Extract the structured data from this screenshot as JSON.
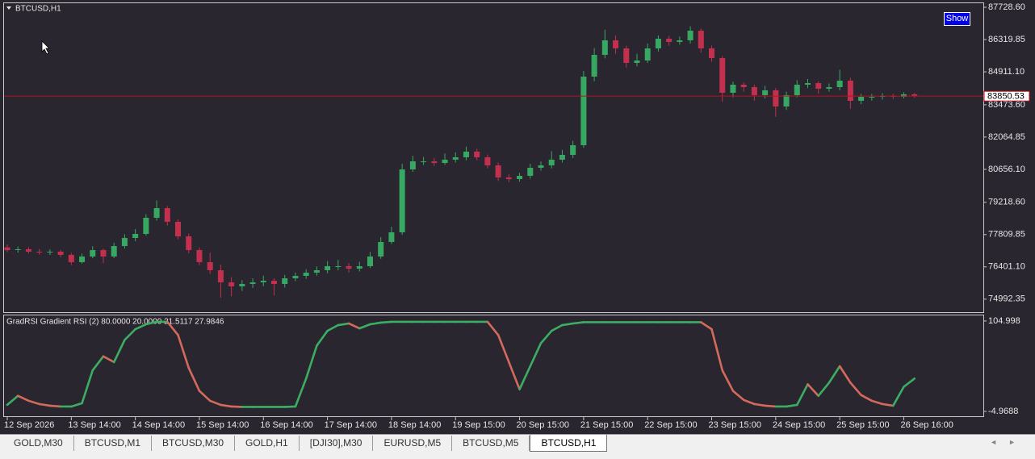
{
  "chart_data": [
    {
      "type": "candlestick",
      "title": "BTCUSD,H1",
      "categories": [
        "12 Sep 2026",
        null,
        null,
        null,
        null,
        null,
        "13 Sep 14:00",
        null,
        null,
        null,
        null,
        null,
        "14 Sep 14:00",
        null,
        null,
        null,
        null,
        null,
        "15 Sep 14:00",
        null,
        null,
        null,
        null,
        null,
        "16 Sep 14:00",
        null,
        null,
        null,
        null,
        null,
        "17 Sep 14:00",
        null,
        null,
        null,
        null,
        null,
        "18 Sep 14:00",
        null,
        null,
        null,
        null,
        null,
        "19 Sep 15:00",
        null,
        null,
        null,
        null,
        null,
        "20 Sep 15:00",
        null,
        null,
        null,
        null,
        null,
        "21 Sep 15:00",
        null,
        null,
        null,
        null,
        null,
        "22 Sep 15:00",
        null,
        null,
        null,
        null,
        null,
        "23 Sep 15:00",
        null,
        null,
        null,
        null,
        null,
        "24 Sep 15:00",
        null,
        null,
        null,
        null,
        null,
        "25 Sep 15:00",
        null,
        null,
        null,
        null,
        null,
        "26 Sep 16:00",
        null
      ],
      "ohlc": [
        [
          77250,
          77380,
          77050,
          77134
        ],
        [
          77134,
          77290,
          77020,
          77169
        ],
        [
          77169,
          77260,
          76980,
          77063
        ],
        [
          77063,
          77180,
          76940,
          77028
        ],
        [
          77028,
          77160,
          76920,
          77063
        ],
        [
          77063,
          77140,
          76820,
          76923
        ],
        [
          76923,
          77010,
          76480,
          76606
        ],
        [
          76606,
          76980,
          76540,
          76853
        ],
        [
          76853,
          77300,
          76780,
          77134
        ],
        [
          77134,
          77200,
          76560,
          76853
        ],
        [
          76853,
          77450,
          76780,
          77310
        ],
        [
          77310,
          77820,
          77200,
          77662
        ],
        [
          77662,
          78050,
          77520,
          77838
        ],
        [
          77838,
          78700,
          77760,
          78542
        ],
        [
          78542,
          79300,
          78420,
          78964
        ],
        [
          78964,
          79050,
          78200,
          78366
        ],
        [
          78366,
          78480,
          77600,
          77732
        ],
        [
          77732,
          77850,
          77000,
          77134
        ],
        [
          77134,
          77250,
          76480,
          76606
        ],
        [
          76606,
          77020,
          76100,
          76254
        ],
        [
          76254,
          76500,
          75050,
          75726
        ],
        [
          75726,
          75950,
          75120,
          75550
        ],
        [
          75550,
          75820,
          75350,
          75655
        ],
        [
          75655,
          75900,
          75480,
          75726
        ],
        [
          75726,
          76020,
          75560,
          75796
        ],
        [
          75796,
          75900,
          75150,
          75655
        ],
        [
          75655,
          76050,
          75500,
          75902
        ],
        [
          75902,
          76150,
          75780,
          76007
        ],
        [
          76007,
          76300,
          75880,
          76148
        ],
        [
          76148,
          76420,
          76020,
          76254
        ],
        [
          76254,
          76650,
          76120,
          76430
        ],
        [
          76430,
          76700,
          76250,
          76430
        ],
        [
          76430,
          76560,
          76150,
          76324
        ],
        [
          76324,
          76620,
          76200,
          76430
        ],
        [
          76430,
          77050,
          76350,
          76853
        ],
        [
          76853,
          77700,
          76750,
          77486
        ],
        [
          77486,
          78150,
          77400,
          77908
        ],
        [
          77908,
          80900,
          77800,
          80654
        ],
        [
          80654,
          81250,
          80550,
          81006
        ],
        [
          81006,
          81200,
          80850,
          81006
        ],
        [
          81006,
          81150,
          80800,
          80935
        ],
        [
          80935,
          81350,
          80850,
          81078
        ],
        [
          81078,
          81400,
          80950,
          81182
        ],
        [
          81182,
          81650,
          81050,
          81429
        ],
        [
          81429,
          81550,
          81050,
          81182
        ],
        [
          81182,
          81300,
          80700,
          80830
        ],
        [
          80830,
          80950,
          80150,
          80302
        ],
        [
          80302,
          80450,
          80100,
          80231
        ],
        [
          80231,
          80500,
          80120,
          80372
        ],
        [
          80372,
          80900,
          80250,
          80725
        ],
        [
          80725,
          81000,
          80600,
          80830
        ],
        [
          80830,
          81450,
          80700,
          81078
        ],
        [
          81078,
          81500,
          80950,
          81287
        ],
        [
          81287,
          81900,
          81150,
          81710
        ],
        [
          81710,
          84950,
          81600,
          84702
        ],
        [
          84702,
          85950,
          84500,
          85652
        ],
        [
          85652,
          86750,
          85500,
          86286
        ],
        [
          86286,
          86500,
          85700,
          85934
        ],
        [
          85934,
          86050,
          85100,
          85300
        ],
        [
          85300,
          85700,
          85150,
          85406
        ],
        [
          85406,
          86150,
          85300,
          85934
        ],
        [
          85934,
          86500,
          85800,
          86357
        ],
        [
          86357,
          86480,
          86050,
          86216
        ],
        [
          86216,
          86450,
          86100,
          86286
        ],
        [
          86286,
          86900,
          86150,
          86707
        ],
        [
          86707,
          86800,
          85750,
          85934
        ],
        [
          85934,
          86050,
          85350,
          85512
        ],
        [
          85512,
          85600,
          83600,
          83998
        ],
        [
          83998,
          84480,
          83800,
          84350
        ],
        [
          84350,
          84450,
          84050,
          84244
        ],
        [
          84244,
          84350,
          83650,
          83893
        ],
        [
          83893,
          84300,
          83750,
          84104
        ],
        [
          84104,
          84200,
          82950,
          83399
        ],
        [
          83399,
          84050,
          83250,
          83893
        ],
        [
          83893,
          84550,
          83800,
          84350
        ],
        [
          84350,
          84600,
          84200,
          84420
        ],
        [
          84420,
          84500,
          83950,
          84174
        ],
        [
          84174,
          84400,
          84050,
          84244
        ],
        [
          84244,
          85000,
          84100,
          84526
        ],
        [
          84526,
          84650,
          83300,
          83646
        ],
        [
          83646,
          83950,
          83500,
          83822
        ],
        [
          83822,
          83950,
          83650,
          83822
        ],
        [
          83822,
          83980,
          83700,
          83857
        ],
        [
          83857,
          83950,
          83720,
          83822
        ],
        [
          83822,
          84020,
          83750,
          83928
        ],
        [
          83928,
          83990,
          83780,
          83850.53
        ]
      ],
      "up_color": "#36a862",
      "down_color": "#c2304e",
      "ylim": [
        74388,
        87905
      ],
      "yticks": [
        {
          "value": 87728.6,
          "label": "87728.60"
        },
        86319.85,
        {
          "value": 84911.1,
          "label": "84911.10"
        },
        {
          "value": 83473.6,
          "label": "83473.60"
        },
        82064.85,
        {
          "value": 80656.1,
          "label": "80656.10"
        },
        {
          "value": 79218.6,
          "label": "79218.60"
        },
        77809.85,
        {
          "value": 76401.1,
          "label": "76401.10"
        },
        74992.35
      ],
      "current_price": 83850.53,
      "current_price_color": "#b3141c"
    },
    {
      "type": "line",
      "title": "GradRSI Gradient RSI (2) 80.0000 20.0000 21.5117 27.9846",
      "values": [
        3,
        14,
        8,
        4,
        2,
        1,
        1,
        5,
        45,
        62,
        55,
        82,
        95,
        101,
        104,
        104,
        88,
        48,
        20,
        8,
        3,
        1,
        0.5,
        0.5,
        0.5,
        0.5,
        0.5,
        1,
        35,
        75,
        93,
        100,
        102,
        96,
        101,
        103,
        104,
        104,
        104,
        104,
        104,
        104,
        104,
        104,
        104,
        104,
        88,
        55,
        22,
        50,
        78,
        93,
        100,
        102,
        103.5,
        103.5,
        103.5,
        103.5,
        103.5,
        103.5,
        103.5,
        103.5,
        103.5,
        103.5,
        103.5,
        103.5,
        95,
        45,
        20,
        9,
        4,
        2,
        1,
        1,
        3,
        28,
        14,
        30,
        50,
        30,
        15,
        8,
        4,
        2,
        25,
        35
      ],
      "up_color": "#3cae63",
      "down_color": "#d46a5c",
      "ylim": [
        -11.8,
        111.8
      ],
      "yticks": [
        104.998,
        -4.9688
      ]
    }
  ],
  "show_button": "Show",
  "tabs": [
    "GOLD,M30",
    "BTCUSD,M1",
    "BTCUSD,M30",
    "GOLD,H1",
    "[DJI30],M30",
    "EURUSD,M5",
    "BTCUSD,M5",
    "BTCUSD,H1"
  ],
  "active_tab": 7
}
